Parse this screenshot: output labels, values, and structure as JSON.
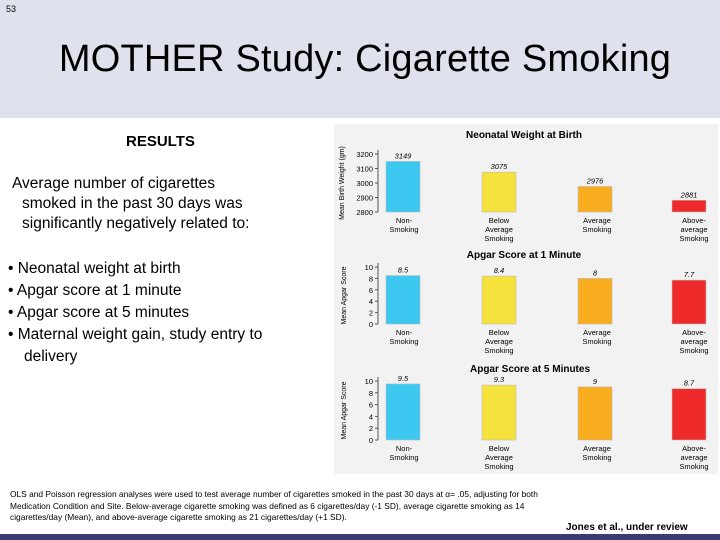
{
  "slide": {
    "number": "53",
    "title": "MOTHER Study:  Cigarette Smoking",
    "results_heading": "RESULTS",
    "intro_lines": [
      "Average number of cigarettes",
      "smoked in the past 30 days was",
      "significantly negatively related to:"
    ],
    "outcomes": [
      "• Neonatal weight at birth",
      "• Apgar score at 1 minute",
      "• Apgar score at 5 minutes",
      "• Maternal weight gain, study entry to",
      "delivery"
    ],
    "footnote_lines": [
      "OLS and Poisson regression analyses were used to test average number of cigarettes smoked in the past 30 days at α= .05, adjusting for both",
      "Medication Condition and Site. Below-average cigarette smoking was defined as 6 cigarettes/day (-1 SD), average cigarette smoking as 14",
      "cigarettes/day (Mean), and above-average cigarette smoking as 21 cigarettes/day (+1 SD)."
    ],
    "citation": "Jones et al., under review"
  },
  "colors": {
    "header_band": "#dfe2ec",
    "non_smoking": "#3cc8f0",
    "below_average": "#f5e23c",
    "average": "#f7ad1e",
    "above_average": "#ee2a2a",
    "panel": "#f2f2f2"
  },
  "chart_data": [
    {
      "type": "bar",
      "title": "Neonatal Weight at Birth",
      "ylabel": "Mean Birth Weight (gm)",
      "categories": [
        "Non-\nSmoking",
        "Below\nAverage\nSmoking",
        "Average\nSmoking",
        "Above-\naverage\nSmoking"
      ],
      "values": [
        3149,
        3075,
        2976,
        2881
      ],
      "value_labels": [
        "3149",
        "3075",
        "2976",
        "2881"
      ],
      "yticks": [
        "3200",
        "3100",
        "3000",
        "2900",
        "2800"
      ],
      "ylim": [
        2800,
        3200
      ]
    },
    {
      "type": "bar",
      "title": "Apgar Score at 1 Minute",
      "ylabel": "Mean Apgar Score",
      "categories": [
        "Non-\nSmoking",
        "Below\nAverage\nSmoking",
        "Average\nSmoking",
        "Above-\naverage\nSmoking"
      ],
      "values": [
        8.5,
        8.4,
        8,
        7.7
      ],
      "value_labels": [
        "8.5",
        "8.4",
        "8",
        "7.7"
      ],
      "yticks": [
        "10",
        "8",
        "6",
        "4",
        "2",
        "0"
      ],
      "ylim": [
        0,
        10
      ]
    },
    {
      "type": "bar",
      "title": "Apgar Score at 5 Minutes",
      "ylabel": "Mean Apgar Score",
      "categories": [
        "Non-\nSmoking",
        "Below\nAverage\nSmoking",
        "Average\nSmoking",
        "Above-\naverage\nSmoking"
      ],
      "values": [
        9.5,
        9.3,
        9,
        8.7
      ],
      "value_labels": [
        "9.5",
        "9.3",
        "9",
        "8.7"
      ],
      "yticks": [
        "10",
        "8",
        "6",
        "4",
        "2",
        "0"
      ],
      "ylim": [
        0,
        10
      ]
    }
  ]
}
